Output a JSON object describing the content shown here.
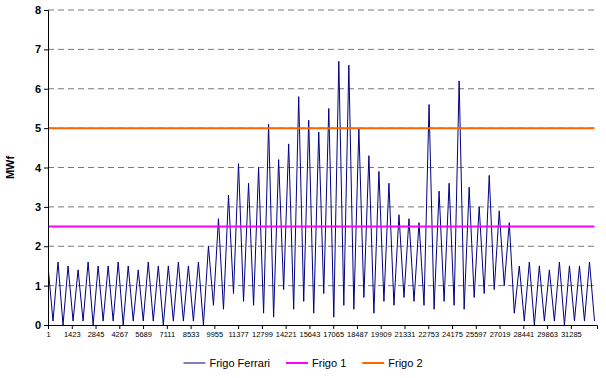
{
  "chart_data": {
    "type": "line",
    "y_label": "MWf",
    "x": [
      1,
      301,
      601,
      901,
      1201,
      1501,
      1801,
      2101,
      2401,
      2701,
      3001,
      3301,
      3601,
      3901,
      4201,
      4501,
      4801,
      5101,
      5401,
      5701,
      6001,
      6301,
      6601,
      6901,
      7201,
      7501,
      7801,
      8101,
      8401,
      8701,
      9001,
      9301,
      9601,
      9901,
      10201,
      10501,
      10801,
      11101,
      11401,
      11701,
      12001,
      12301,
      12601,
      12901,
      13201,
      13501,
      13801,
      14101,
      14401,
      14701,
      15001,
      15301,
      15601,
      15901,
      16201,
      16501,
      16801,
      17101,
      17401,
      17701,
      18001,
      18301,
      18601,
      18901,
      19201,
      19501,
      19801,
      20101,
      20401,
      20701,
      21001,
      21301,
      21601,
      21901,
      22201,
      22501,
      22801,
      23101,
      23401,
      23701,
      24001,
      24301,
      24601,
      24901,
      25201,
      25501,
      25801,
      26101,
      26401,
      26701,
      27001,
      27301,
      27601,
      27901,
      28201,
      28501,
      28801,
      29101,
      29401,
      29701,
      30001,
      30301,
      30601,
      30901,
      31201,
      31501,
      31801,
      32101,
      32401,
      32701
    ],
    "xlim": [
      1,
      32850
    ],
    "xticks": [
      1,
      1423,
      2845,
      4267,
      5689,
      7111,
      8533,
      9955,
      11377,
      12799,
      14221,
      15643,
      17065,
      18487,
      19909,
      21331,
      22753,
      24175,
      25597,
      27019,
      28441,
      29863,
      31285
    ],
    "ylim": [
      0,
      8
    ],
    "yticks": [
      0,
      1,
      2,
      3,
      4,
      5,
      6,
      7,
      8
    ],
    "grid": true,
    "legend": "bottom",
    "series": [
      {
        "name": "Frigo Ferrari",
        "color": "#000080",
        "values": [
          1.5,
          0.1,
          1.6,
          0.0,
          1.5,
          0.1,
          1.4,
          0.1,
          1.6,
          0.0,
          1.5,
          0.1,
          1.5,
          0.1,
          1.6,
          0.0,
          1.5,
          0.1,
          1.4,
          0.1,
          1.6,
          0.1,
          1.5,
          0.0,
          1.5,
          0.1,
          1.6,
          0.1,
          1.5,
          0.1,
          1.6,
          0.0,
          2.0,
          0.5,
          2.7,
          0.4,
          3.3,
          0.8,
          4.1,
          0.6,
          3.6,
          0.5,
          4.0,
          0.3,
          5.1,
          0.2,
          4.2,
          0.9,
          4.6,
          0.4,
          5.8,
          0.6,
          5.2,
          0.3,
          4.9,
          0.8,
          5.5,
          0.2,
          6.7,
          0.5,
          6.6,
          0.4,
          5.0,
          0.7,
          4.3,
          0.3,
          3.9,
          0.6,
          3.6,
          0.5,
          2.8,
          0.7,
          2.7,
          0.6,
          2.6,
          0.5,
          5.6,
          0.4,
          3.4,
          0.6,
          3.6,
          0.5,
          6.2,
          0.4,
          3.5,
          0.7,
          3.0,
          0.8,
          3.8,
          0.9,
          2.9,
          1.0,
          2.6,
          0.3,
          1.5,
          0.1,
          1.6,
          0.0,
          1.5,
          0.1,
          1.4,
          0.1,
          1.6,
          0.0,
          1.5,
          0.1,
          1.5,
          0.1,
          1.6,
          0.1
        ]
      },
      {
        "name": "Frigo 1",
        "color": "#FF00FF",
        "values": [
          2.5,
          2.5,
          2.5,
          2.5,
          2.5,
          2.5,
          2.5,
          2.5,
          2.5,
          2.5,
          2.5,
          2.5,
          2.5,
          2.5,
          2.5,
          2.5,
          2.5,
          2.5,
          2.5,
          2.5,
          2.5,
          2.5,
          2.5,
          2.5,
          2.5,
          2.5,
          2.5,
          2.5,
          2.5,
          2.5,
          2.5,
          2.5,
          2.5,
          2.5,
          2.5,
          2.5,
          2.5,
          2.5,
          2.5,
          2.5,
          2.5,
          2.5,
          2.5,
          2.5,
          2.5,
          2.5,
          2.5,
          2.5,
          2.5,
          2.5,
          2.5,
          2.5,
          2.5,
          2.5,
          2.5,
          2.5,
          2.5,
          2.5,
          2.5,
          2.5,
          2.5,
          2.5,
          2.5,
          2.5,
          2.5,
          2.5,
          2.5,
          2.5,
          2.5,
          2.5,
          2.5,
          2.5,
          2.5,
          2.5,
          2.5,
          2.5,
          2.5,
          2.5,
          2.5,
          2.5,
          2.5,
          2.5,
          2.5,
          2.5,
          2.5,
          2.5,
          2.5,
          2.5,
          2.5,
          2.5,
          2.5,
          2.5,
          2.5,
          2.5,
          2.5,
          2.5,
          2.5,
          2.5,
          2.5,
          2.5,
          2.5,
          2.5,
          2.5,
          2.5,
          2.5,
          2.5,
          2.5,
          2.5,
          2.5,
          2.5
        ]
      },
      {
        "name": "Frigo 2",
        "color": "#FF6600",
        "values": [
          5,
          5,
          5,
          5,
          5,
          5,
          5,
          5,
          5,
          5,
          5,
          5,
          5,
          5,
          5,
          5,
          5,
          5,
          5,
          5,
          5,
          5,
          5,
          5,
          5,
          5,
          5,
          5,
          5,
          5,
          5,
          5,
          5,
          5,
          5,
          5,
          5,
          5,
          5,
          5,
          5,
          5,
          5,
          5,
          5,
          5,
          5,
          5,
          5,
          5,
          5,
          5,
          5,
          5,
          5,
          5,
          5,
          5,
          5,
          5,
          5,
          5,
          5,
          5,
          5,
          5,
          5,
          5,
          5,
          5,
          5,
          5,
          5,
          5,
          5,
          5,
          5,
          5,
          5,
          5,
          5,
          5,
          5,
          5,
          5,
          5,
          5,
          5,
          5,
          5,
          5,
          5,
          5,
          5,
          5,
          5,
          5,
          5,
          5,
          5,
          5,
          5,
          5,
          5,
          5,
          5,
          5,
          5,
          5,
          5
        ]
      }
    ]
  }
}
